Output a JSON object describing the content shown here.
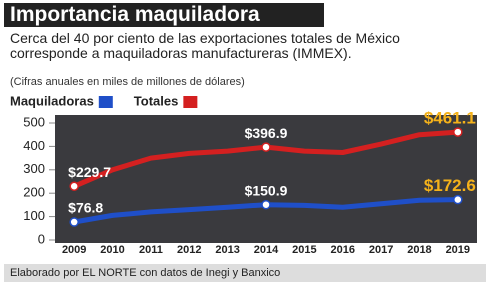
{
  "chart_data": {
    "type": "line",
    "title": "Importancia maquiladora",
    "subtitle": "Cerca del 40 por ciento de las exportaciones totales de México corresponde a maquiladoras manufactureras (IMMEX).",
    "note": "(Cifras anuales en miles de millones de dólares)",
    "source": "Elaborado por EL NORTE con datos de Inegi y Banxico",
    "categories": [
      "2009",
      "2010",
      "2011",
      "2012",
      "2013",
      "2014",
      "2015",
      "2016",
      "2017",
      "2018",
      "2019"
    ],
    "series": [
      {
        "name": "Maquiladoras",
        "color": "#1f4fc8",
        "values": [
          76.8,
          105,
          120,
          130,
          140,
          150.9,
          148,
          140,
          155,
          170,
          172.6
        ],
        "value_labels": [
          "$76.8",
          null,
          null,
          null,
          null,
          "$150.9",
          null,
          null,
          null,
          null,
          "$172.6"
        ]
      },
      {
        "name": "Totales",
        "color": "#d42020",
        "values": [
          229.7,
          300,
          350,
          370,
          380,
          396.9,
          380,
          374,
          410,
          450,
          461.1
        ],
        "value_labels": [
          "$229.7",
          null,
          null,
          null,
          null,
          "$396.9",
          null,
          null,
          null,
          null,
          "$461.1"
        ]
      }
    ],
    "ylim": [
      0,
      500
    ],
    "yticks": [
      0,
      100,
      200,
      300,
      400,
      500
    ],
    "grid": false
  }
}
